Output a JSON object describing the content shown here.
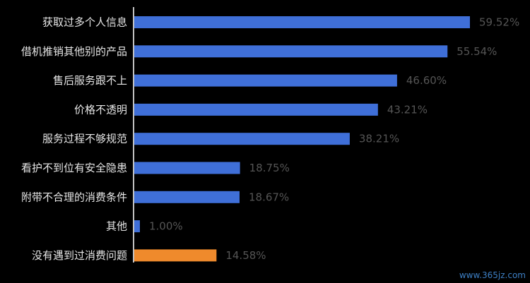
{
  "chart_data": {
    "type": "bar",
    "orientation": "horizontal",
    "categories": [
      "获取过多个人信息",
      "借机推销其他别的产品",
      "售后服务跟不上",
      "价格不透明",
      "服务过程不够规范",
      "看护不到位有安全隐患",
      "附带不合理的消费条件",
      "其他",
      "没有遇到过消费问题"
    ],
    "values": [
      59.52,
      55.54,
      46.6,
      43.21,
      38.21,
      18.75,
      18.67,
      1.0,
      14.58
    ],
    "value_labels": [
      "59.52%",
      "55.54%",
      "46.60%",
      "43.21%",
      "38.21%",
      "18.75%",
      "18.67%",
      "1.00%",
      "14.58%"
    ],
    "bar_colors": [
      "#3f6fd8",
      "#3f6fd8",
      "#3f6fd8",
      "#3f6fd8",
      "#3f6fd8",
      "#3f6fd8",
      "#3f6fd8",
      "#3f6fd8",
      "#ef8a2c"
    ],
    "xlim": [
      0,
      60
    ],
    "grid": false,
    "legend": "none"
  },
  "colors": {
    "background": "#000000",
    "axis": "#ffffff",
    "primary": "#3f6fd8",
    "highlight": "#ef8a2c"
  },
  "watermark": "www.365jz.com"
}
